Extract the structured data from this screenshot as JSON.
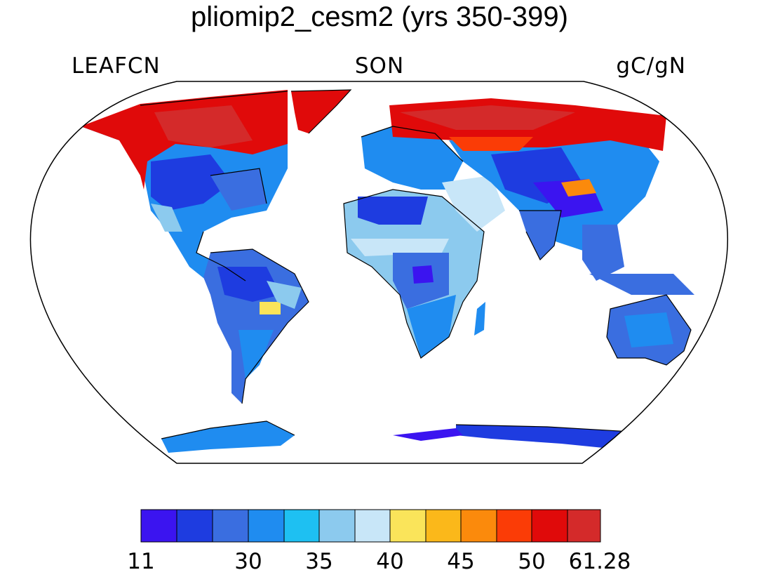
{
  "title": "pliomip2_cesm2 (yrs 350-399)",
  "subtitle_left": "LEAFCN",
  "subtitle_center": "SON",
  "subtitle_right": "gC/gN",
  "map": {
    "projection": "Robinson (global)",
    "variable": "LEAFCN",
    "season": "SON",
    "units": "gC/gN"
  },
  "colorbar": {
    "colors": [
      "#3b14f0",
      "#1e3ce0",
      "#3a6ee0",
      "#1f8cf0",
      "#1ec0f2",
      "#8ccaee",
      "#c8e6f8",
      "#fae45a",
      "#fbb81a",
      "#fb8a0c",
      "#fb3c06",
      "#e00a0a",
      "#d42a2a"
    ],
    "labels": [
      "11",
      "30",
      "35",
      "40",
      "45",
      "50",
      "61.28"
    ]
  }
}
